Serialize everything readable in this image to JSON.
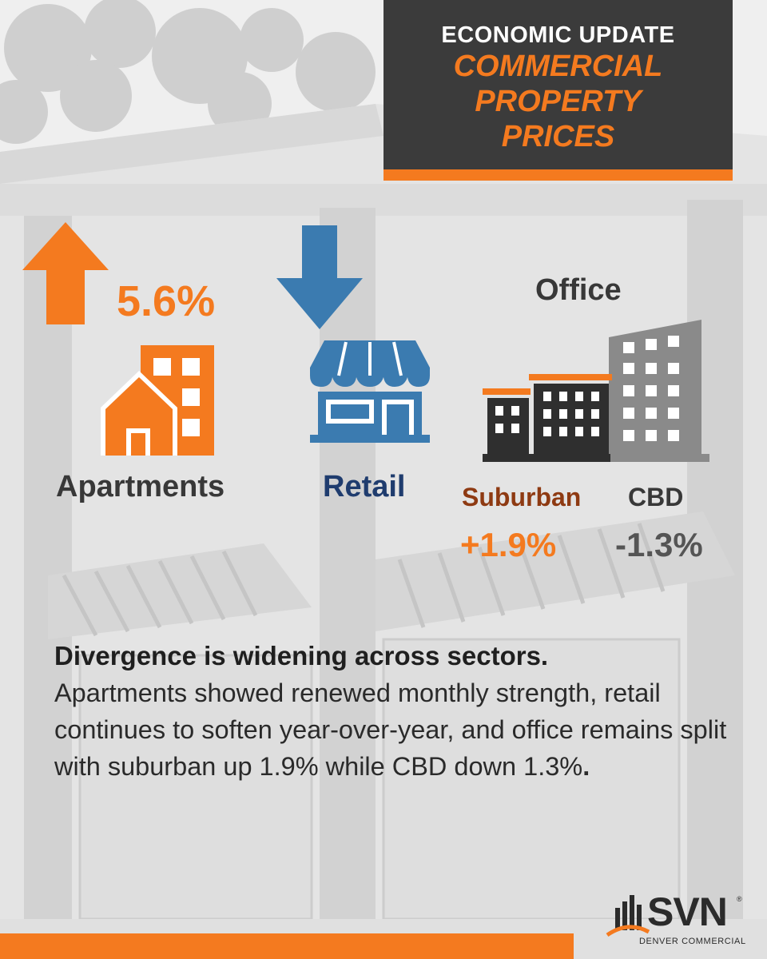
{
  "title": {
    "line1": "ECONOMIC UPDATE",
    "line2": [
      "COMMERCIAL",
      "PROPERTY",
      "PRICES"
    ]
  },
  "apartments": {
    "label": "Apartments",
    "change": "5.6%",
    "direction": "up-arrow-icon"
  },
  "retail": {
    "label": "Retail",
    "direction": "down-arrow-icon"
  },
  "office": {
    "label": "Office",
    "suburban": {
      "label": "Suburban",
      "change": "+1.9%"
    },
    "cbd": {
      "label": "CBD",
      "change": "-1.3%"
    }
  },
  "summary": {
    "headline": "Divergence is widening across sectors.",
    "body": "Apartments showed renewed monthly strength, retail continues to soften year-over-year, and office remains split with suburban up 1.9% while CBD down 1.3%",
    "end": "."
  },
  "logo": {
    "brand": "SVN",
    "reg": "®",
    "subtitle": "DENVER COMMERCIAL"
  },
  "colors": {
    "orange": "#f47a1f",
    "blue": "#3b7bb0",
    "navy": "#1f3c6e",
    "dark": "#3b3b3b",
    "gray": "#888888"
  }
}
